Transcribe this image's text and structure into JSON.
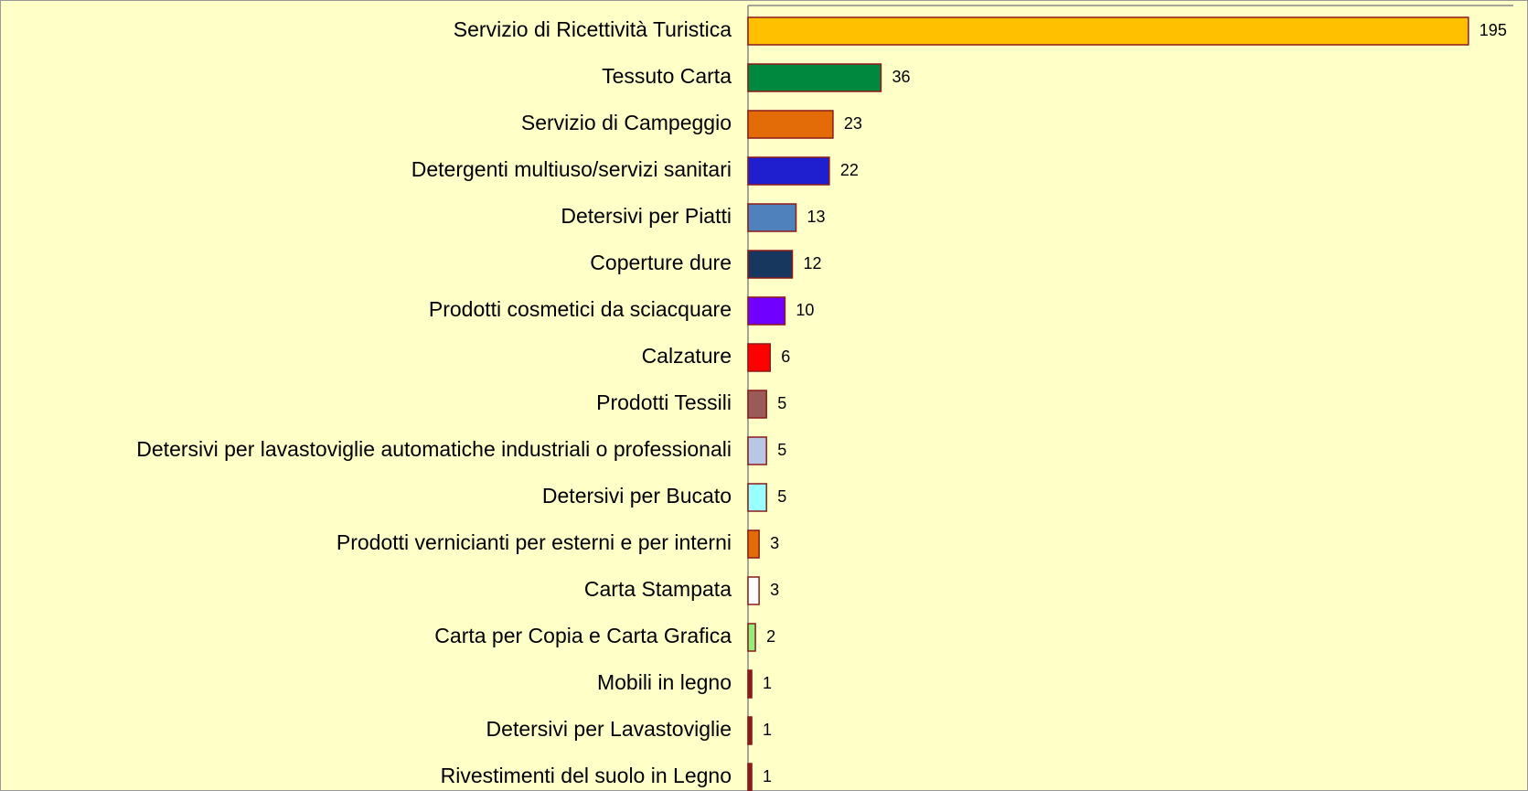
{
  "chart_data": {
    "type": "bar",
    "orientation": "horizontal",
    "categories": [
      "Servizio di Ricettività Turistica",
      "Tessuto Carta",
      "Servizio di Campeggio",
      "Detergenti multiuso/servizi sanitari",
      "Detersivi per Piatti",
      "Coperture dure",
      "Prodotti cosmetici da sciacquare",
      "Calzature",
      "Prodotti Tessili",
      "Detersivi per lavastoviglie automatiche industriali o professionali",
      "Detersivi per Bucato",
      "Prodotti vernicianti per esterni e per interni",
      "Carta Stampata",
      "Carta per Copia e Carta Grafica",
      "Mobili in legno",
      "Detersivi per Lavastoviglie",
      "Rivestimenti del suolo in Legno"
    ],
    "values": [
      195,
      36,
      23,
      22,
      13,
      12,
      10,
      6,
      5,
      5,
      5,
      3,
      3,
      2,
      1,
      1,
      1
    ],
    "colors": [
      "#ffc000",
      "#00883f",
      "#e36c09",
      "#1f1fcf",
      "#4f81bd",
      "#17375e",
      "#7000ff",
      "#ff0000",
      "#9b5a5a",
      "#b9c7e6",
      "#99ffff",
      "#e36c09",
      "#ffffff",
      "#92ef7a",
      "#8b1a1a",
      "#8b1a1a",
      "#8b1a1a"
    ],
    "xlim": [
      0,
      200
    ]
  }
}
